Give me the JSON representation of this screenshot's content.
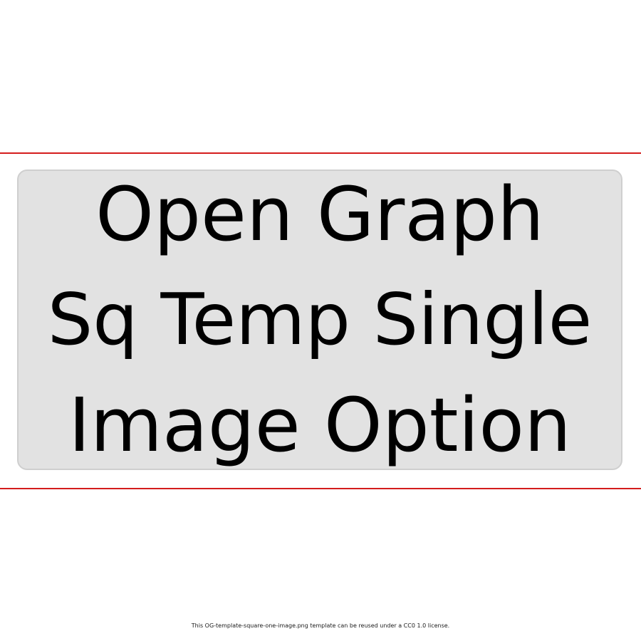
{
  "image": {
    "title_lines": [
      "Open Graph",
      "Sq Temp Single",
      "Image Option"
    ]
  },
  "footer": {
    "license_text": "This OG-template-square-one-image.png template can be reused under a CC0 1.0 license."
  },
  "colors": {
    "guide_line": "#d41c1c",
    "box_fill": "#e2e2e2",
    "box_border": "#cfcfcf",
    "text": "#000000"
  }
}
